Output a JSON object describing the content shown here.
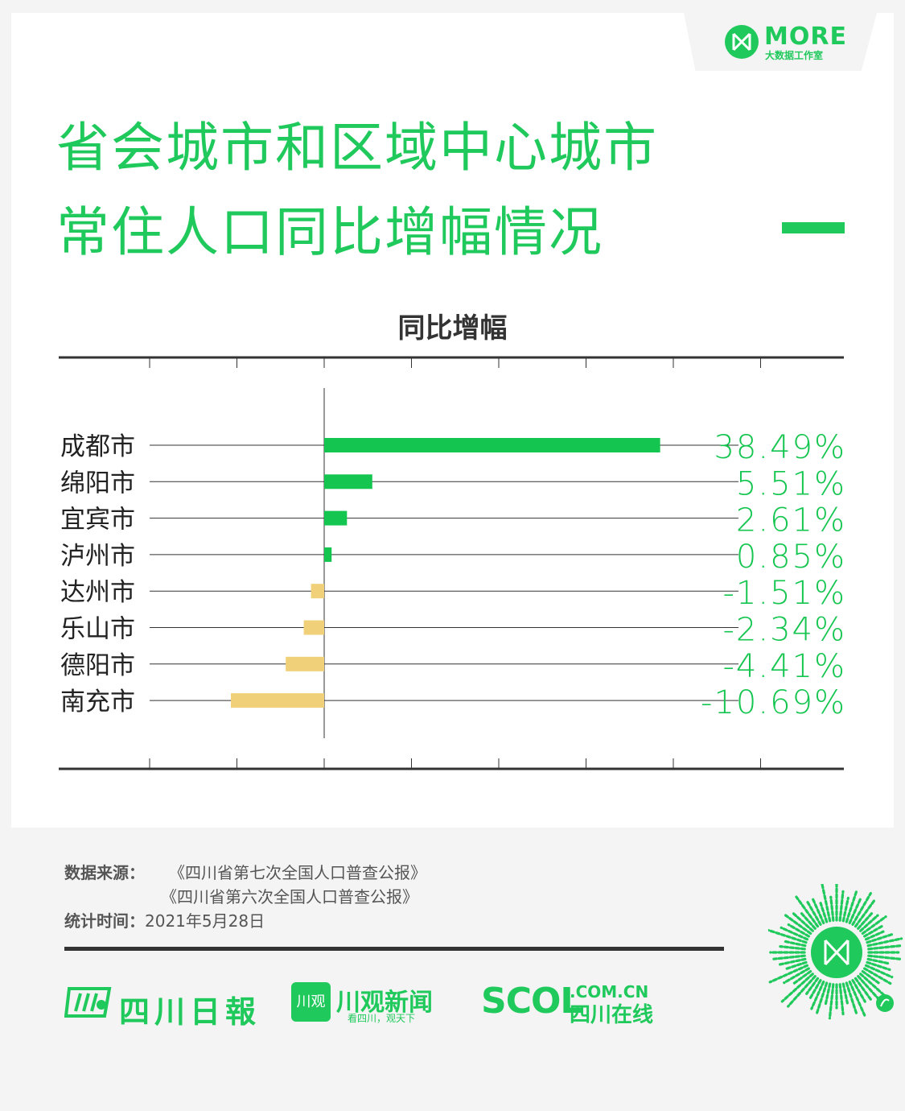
{
  "brand": {
    "name": "MORE",
    "subtitle": "大数据工作室"
  },
  "title": {
    "line1": "省会城市和区域中心城市",
    "line2": "常住人口同比增幅情况"
  },
  "colors": {
    "accent": "#1fc95b",
    "positive": "#14c54f",
    "negative": "#f0d078",
    "axis": "#333333"
  },
  "chart_data": {
    "type": "bar",
    "orientation": "horizontal",
    "title": "同比增幅",
    "categories": [
      "成都市",
      "绵阳市",
      "宜宾市",
      "泸州市",
      "达州市",
      "乐山市",
      "德阳市",
      "南充市"
    ],
    "values": [
      38.49,
      5.51,
      2.61,
      0.85,
      -1.51,
      -2.34,
      -4.41,
      -10.69
    ],
    "value_labels": [
      "38.49%",
      "5.51%",
      "2.61%",
      "0.85%",
      "-1.51%",
      "-2.34%",
      "-4.41%",
      "-10.69%"
    ],
    "xlim": [
      -20,
      50
    ],
    "x_tick_step": 10,
    "grid": false,
    "legend": "none"
  },
  "source": {
    "label": "数据来源：",
    "lines": [
      "《四川省第七次全国人口普查公报》",
      "《四川省第六次全国人口普查公报》"
    ],
    "date_label": "统计时间：",
    "date": "2021年5月28日"
  },
  "footer_logos": {
    "sichuan_daily": "四川日報",
    "chuanguan_box": "川观",
    "chuanguan_name": "川观新闻",
    "chuanguan_slogan": "看四川，观天下",
    "scol_main": "SCOL",
    "scol_domain": ".COM.CN",
    "scol_cn": "四川在线"
  }
}
